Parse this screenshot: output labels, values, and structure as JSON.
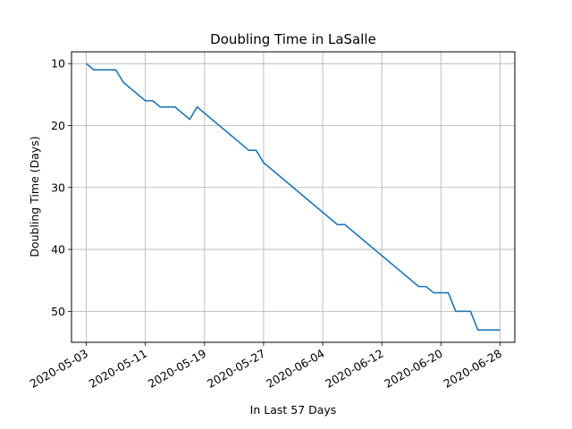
{
  "chart_data": {
    "type": "line",
    "title": "Doubling Time in  LaSalle",
    "xlabel": "In Last 57 Days",
    "ylabel": "Doubling Time (Days)",
    "x_type": "date",
    "x_ticks": [
      "2020-05-03",
      "2020-05-11",
      "2020-05-19",
      "2020-05-27",
      "2020-06-04",
      "2020-06-12",
      "2020-06-20",
      "2020-06-28"
    ],
    "y_ticks": [
      10,
      20,
      30,
      40,
      50
    ],
    "y_inverted": true,
    "ylim": [
      55,
      8.1
    ],
    "xlim": [
      "2020-05-01",
      "2020-06-30"
    ],
    "grid": true,
    "series": [
      {
        "color": "#1f77b4",
        "points": [
          [
            "2020-05-03",
            10
          ],
          [
            "2020-05-04",
            11
          ],
          [
            "2020-05-07",
            11
          ],
          [
            "2020-05-08",
            13
          ],
          [
            "2020-05-11",
            16
          ],
          [
            "2020-05-12",
            16
          ],
          [
            "2020-05-13",
            17
          ],
          [
            "2020-05-15",
            17
          ],
          [
            "2020-05-17",
            19
          ],
          [
            "2020-05-18",
            17
          ],
          [
            "2020-05-25",
            24
          ],
          [
            "2020-05-26",
            24
          ],
          [
            "2020-05-27",
            26
          ],
          [
            "2020-06-06",
            36
          ],
          [
            "2020-06-07",
            36
          ],
          [
            "2020-06-17",
            46
          ],
          [
            "2020-06-18",
            46
          ],
          [
            "2020-06-19",
            47
          ],
          [
            "2020-06-21",
            47
          ],
          [
            "2020-06-22",
            50
          ],
          [
            "2020-06-24",
            50
          ],
          [
            "2020-06-25",
            53
          ],
          [
            "2020-06-28",
            53
          ]
        ]
      }
    ]
  }
}
